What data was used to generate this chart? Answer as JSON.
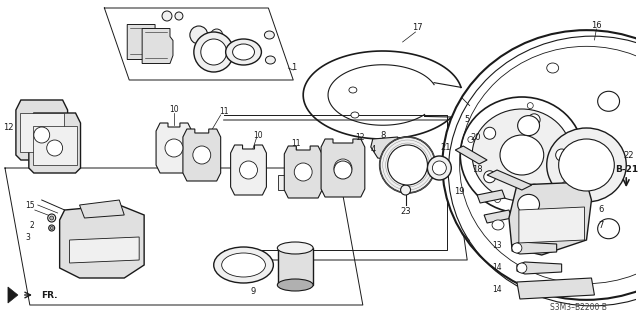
{
  "background_color": "#ffffff",
  "footer_text": "S3M3–B2200 B",
  "arrow_label": "B-21",
  "fr_label": "FR.",
  "fig_width": 6.4,
  "fig_height": 3.19,
  "dpi": 100,
  "line_color": "#1a1a1a",
  "gray_fill": "#e0e0e0",
  "dark_gray": "#b0b0b0",
  "light_gray": "#f0f0f0"
}
